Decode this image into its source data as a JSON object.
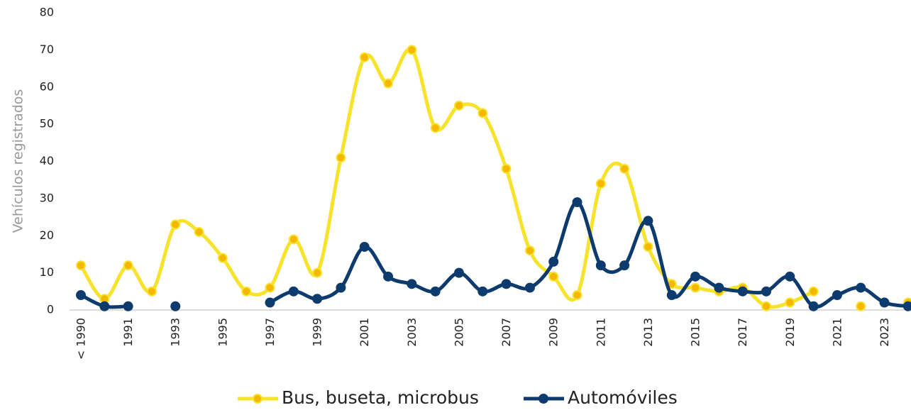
{
  "chart_data": {
    "type": "line",
    "y_label": "Vehículos registrados",
    "categories": [
      "< 1990",
      null,
      "1991",
      null,
      "1993",
      null,
      "1995",
      null,
      "1997",
      null,
      "1999",
      null,
      "2001",
      null,
      "2003",
      null,
      "2005",
      null,
      "2007",
      null,
      "2009",
      null,
      "2011",
      null,
      "2013",
      null,
      "2015",
      null,
      "2017",
      null,
      "2019",
      null,
      "2021",
      null,
      "2023",
      null
    ],
    "series": [
      {
        "name": "Bus, buseta, microbus",
        "color": "#f7e22c",
        "marker_color": "#f5b800",
        "values": [
          12,
          3,
          12,
          5,
          23,
          21,
          14,
          5,
          6,
          19,
          10,
          41,
          68,
          61,
          70,
          49,
          55,
          53,
          38,
          16,
          9,
          4,
          34,
          38,
          17,
          7,
          6,
          5,
          6,
          1,
          2,
          5,
          null,
          1,
          null,
          2
        ]
      },
      {
        "name": "Automóviles",
        "color": "#0d3b6e",
        "marker_color": "#0d3b6e",
        "values": [
          4,
          1,
          1,
          null,
          1,
          null,
          null,
          null,
          2,
          5,
          3,
          6,
          17,
          9,
          7,
          5,
          10,
          5,
          7,
          6,
          13,
          29,
          12,
          12,
          24,
          4,
          9,
          6,
          5,
          5,
          9,
          1,
          4,
          6,
          2,
          1
        ]
      }
    ],
    "ylim": [
      0,
      80
    ],
    "yticks": [
      0,
      10,
      20,
      30,
      40,
      50,
      60,
      70,
      80
    ],
    "smooth": true
  }
}
